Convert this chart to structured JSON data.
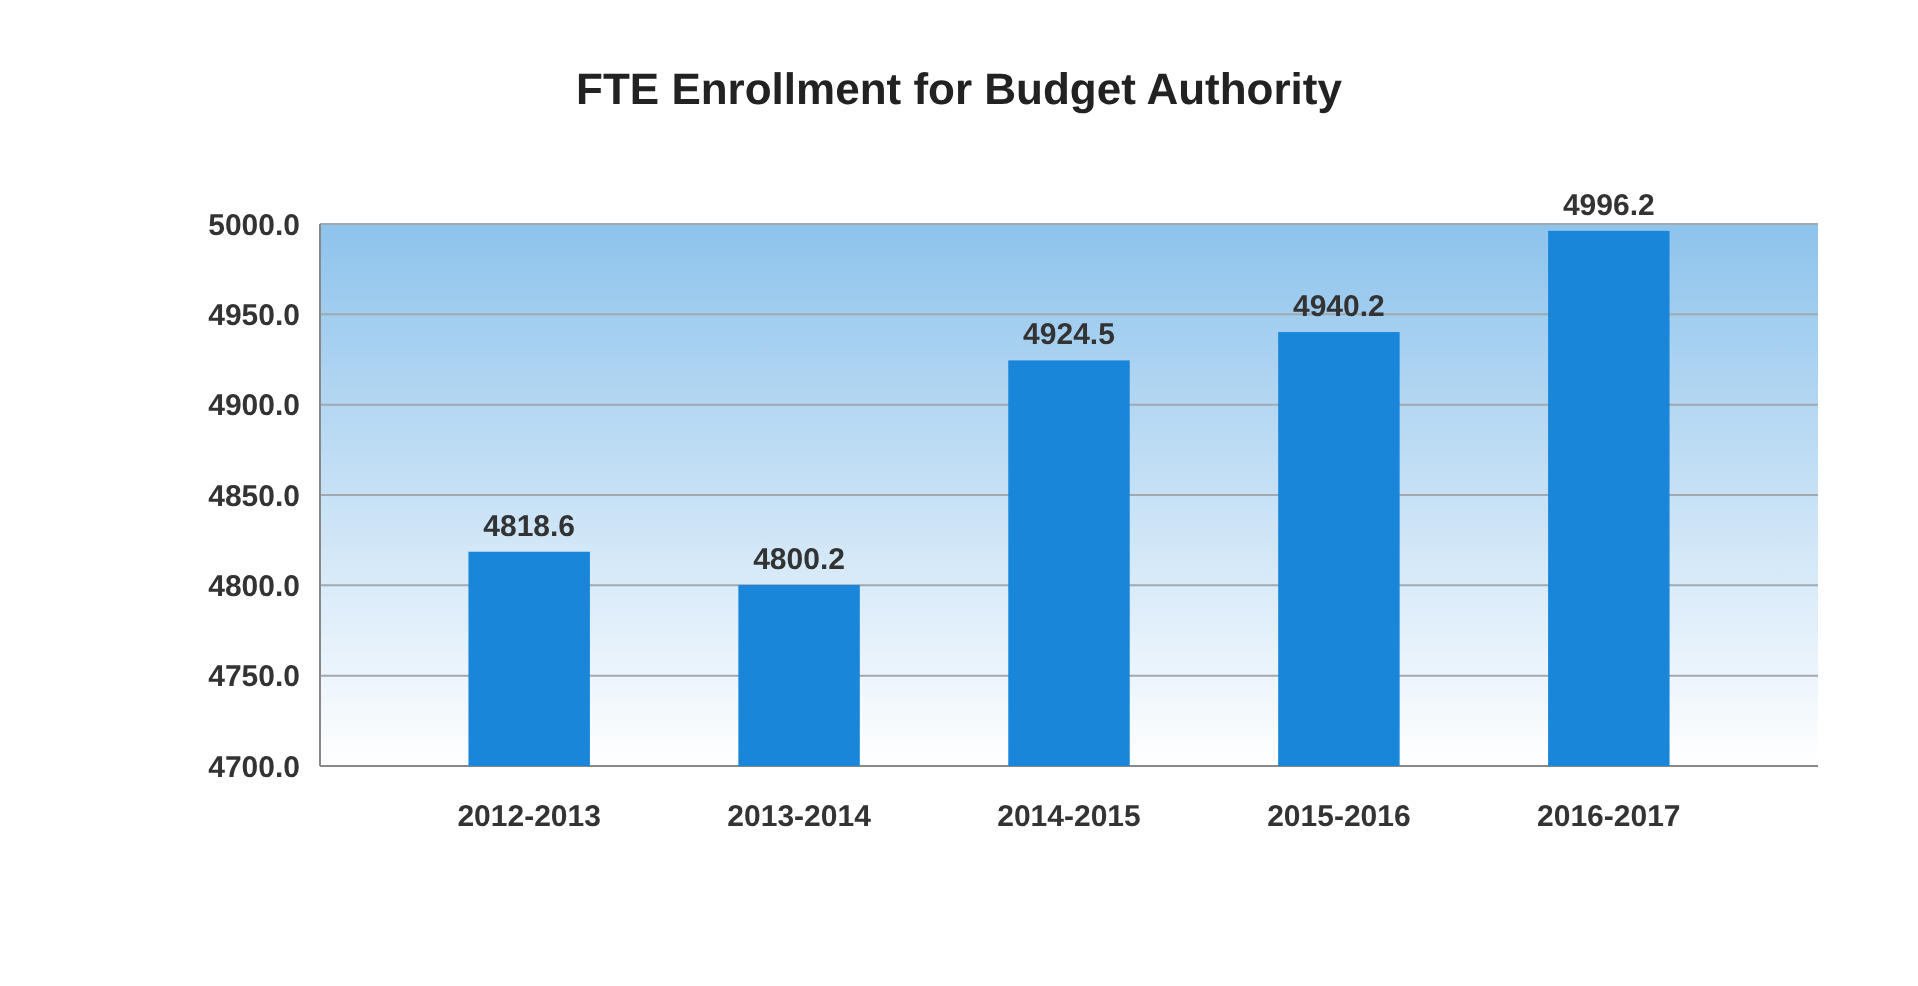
{
  "chart_data": {
    "type": "bar",
    "title": "FTE Enrollment for Budget Authority",
    "categories": [
      "2012-2013",
      "2013-2014",
      "2014-2015",
      "2015-2016",
      "2016-2017"
    ],
    "values": [
      4818.6,
      4800.2,
      4924.5,
      4940.2,
      4996.2
    ],
    "color": "#1a86d9",
    "ylim": [
      4700,
      5000
    ],
    "yticks": [
      {
        "value": 4700,
        "label": "4700.0"
      },
      {
        "value": 4750,
        "label": "4750.0"
      },
      {
        "value": 4800,
        "label": "4800.0"
      },
      {
        "value": 4850,
        "label": "4850.0"
      },
      {
        "value": 4900,
        "label": "4900.0"
      },
      {
        "value": 4950,
        "label": "4950.0"
      },
      {
        "value": 5000,
        "label": "5000.0"
      }
    ],
    "grid": "y",
    "data_labels": true
  }
}
